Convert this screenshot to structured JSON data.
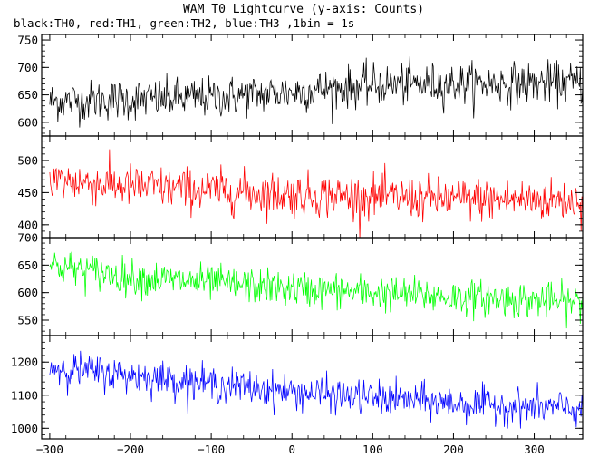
{
  "title": "WAM T0 Lightcurve (y-axis: Counts)",
  "subtitle": "black:TH0, red:TH1, green:TH2, blue:TH3 ,1bin = 1s",
  "chart_data": {
    "type": "line",
    "title": "WAM T0 Lightcurve (y-axis: Counts)",
    "legend_text": "black:TH0, red:TH1, green:TH2, blue:TH3 ,1bin = 1s",
    "grid": false,
    "x": {
      "range": [
        -310,
        360
      ],
      "ticks": [
        -300,
        -200,
        -100,
        0,
        100,
        200,
        300
      ],
      "step": 1
    },
    "panels": [
      {
        "name": "TH0",
        "color": "#000000",
        "ylim": [
          575,
          760
        ],
        "yticks": [
          600,
          650,
          700,
          750
        ],
        "trend": [
          [
            -300,
            638
          ],
          [
            -100,
            645
          ],
          [
            0,
            655
          ],
          [
            100,
            668
          ],
          [
            200,
            670
          ],
          [
            360,
            672
          ]
        ],
        "noise": 30
      },
      {
        "name": "TH1",
        "color": "#ff0000",
        "ylim": [
          380,
          538
        ],
        "yticks": [
          400,
          450,
          500
        ],
        "trend": [
          [
            -300,
            470
          ],
          [
            -200,
            460
          ],
          [
            0,
            447
          ],
          [
            200,
            440
          ],
          [
            360,
            438
          ]
        ],
        "noise": 27
      },
      {
        "name": "TH2",
        "color": "#00ff00",
        "ylim": [
          522,
          700
        ],
        "yticks": [
          550,
          600,
          650,
          700
        ],
        "trend": [
          [
            -300,
            650
          ],
          [
            -200,
            628
          ],
          [
            0,
            607
          ],
          [
            200,
            592
          ],
          [
            360,
            582
          ]
        ],
        "noise": 26
      },
      {
        "name": "TH3",
        "color": "#0000ff",
        "ylim": [
          968,
          1280
        ],
        "yticks": [
          1000,
          1100,
          1200
        ],
        "trend": [
          [
            -300,
            1185
          ],
          [
            -200,
            1160
          ],
          [
            0,
            1110
          ],
          [
            200,
            1075
          ],
          [
            360,
            1058
          ]
        ],
        "noise": 42
      }
    ]
  }
}
